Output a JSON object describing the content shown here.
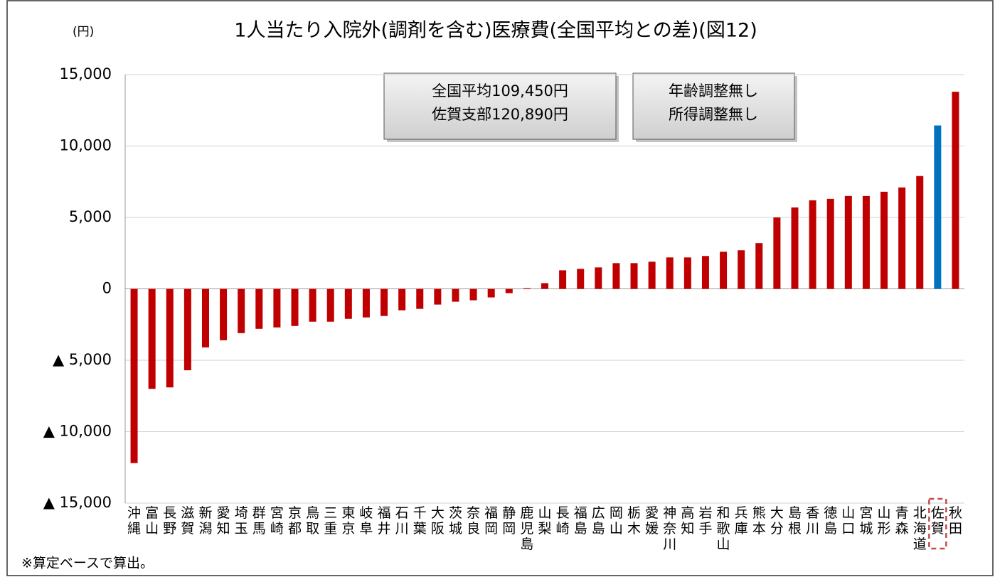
{
  "chart_data": {
    "type": "bar",
    "title": "1人当たり入院外(調剤を含む)医療費(全国平均との差)(図12)",
    "y_unit": "(円)",
    "notes": [
      [
        "全国平均109,450円",
        "佐賀支部120,890円"
      ],
      [
        "年齢調整無し",
        "所得調整無し"
      ]
    ],
    "footnote": "※算定ベースで算出。",
    "categories": [
      "沖縄",
      "富山",
      "長野",
      "滋賀",
      "新潟",
      "愛知",
      "埼玉",
      "群馬",
      "宮崎",
      "京都",
      "鳥取",
      "三重",
      "東京",
      "岐阜",
      "福井",
      "石川",
      "千葉",
      "大阪",
      "茨城",
      "奈良",
      "福岡",
      "静岡",
      "鹿児島",
      "山梨",
      "長崎",
      "福島",
      "広島",
      "岡山",
      "栃木",
      "愛媛",
      "神奈川",
      "高知",
      "岩手",
      "和歌山",
      "兵庫",
      "熊本",
      "大分",
      "島根",
      "香川",
      "徳島",
      "山口",
      "宮城",
      "山形",
      "青森",
      "北海道",
      "佐賀",
      "秋田"
    ],
    "values": [
      -12200,
      -7000,
      -6900,
      -5700,
      -4100,
      -3600,
      -3100,
      -2800,
      -2700,
      -2600,
      -2300,
      -2300,
      -2100,
      -2000,
      -1900,
      -1500,
      -1400,
      -1100,
      -900,
      -800,
      -600,
      -300,
      50,
      400,
      1300,
      1400,
      1500,
      1800,
      1800,
      1900,
      2200,
      2200,
      2300,
      2600,
      2700,
      3200,
      5000,
      5700,
      6200,
      6300,
      6500,
      6500,
      6800,
      7100,
      7900,
      11440,
      13800
    ],
    "color": "#c00000",
    "highlight_index": 45,
    "highlight_color": "#0070c0",
    "ylim": [
      -15000,
      15000
    ],
    "yticks": [
      {
        "value": -15000,
        "label": "▲ 15,000"
      },
      {
        "value": -10000,
        "label": "▲ 10,000"
      },
      {
        "value": -5000,
        "label": "▲ 5,000"
      },
      0,
      {
        "value": 5000,
        "label": "5,000"
      },
      {
        "value": 10000,
        "label": "10,000"
      },
      {
        "value": 15000,
        "label": "15,000"
      }
    ],
    "grid": true
  }
}
